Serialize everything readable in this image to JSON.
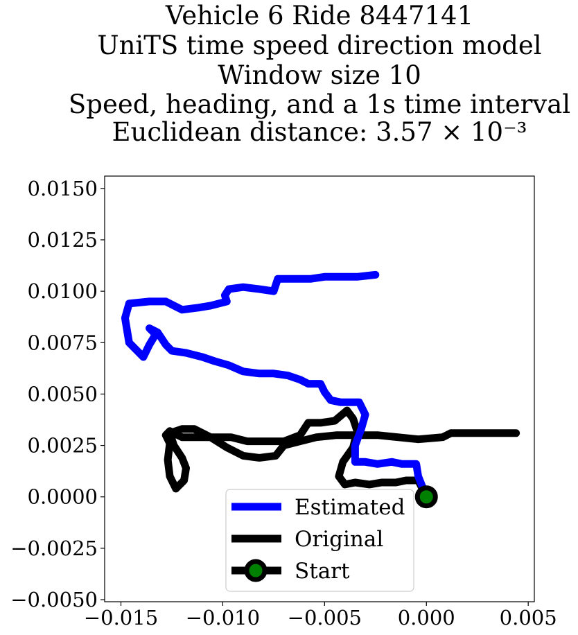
{
  "chart_data": {
    "type": "line",
    "title_lines": [
      "Vehicle 6 Ride 8447141",
      "UniTS time speed direction model",
      "Window size 10",
      "Speed, heading, and a 1s time interval",
      "Euclidean distance: 3.57 × 10⁻³"
    ],
    "xlabel": "",
    "ylabel": "",
    "xlim": [
      -0.0158,
      0.0053
    ],
    "ylim": [
      -0.0051,
      0.0156
    ],
    "xticks": [
      -0.015,
      -0.01,
      -0.005,
      0.0,
      0.005
    ],
    "xtick_labels": [
      "−0.015",
      "−0.010",
      "−0.005",
      "0.000",
      "0.005"
    ],
    "yticks": [
      0.015,
      0.0125,
      0.01,
      0.0075,
      0.005,
      0.0025,
      0.0,
      -0.0025,
      -0.005
    ],
    "ytick_labels": [
      "0.0150",
      "0.0125",
      "0.0100",
      "0.0075",
      "0.0050",
      "0.0025",
      "0.0000",
      "−0.0025",
      "−0.0050"
    ],
    "grid": false,
    "legend_position": "lower-center",
    "series": [
      {
        "name": "Estimated",
        "color": "#0000ff",
        "points": [
          [
            0.0,
            0.0
          ],
          [
            -0.0002,
            0.0005
          ],
          [
            -0.0004,
            0.001
          ],
          [
            -0.0005,
            0.0016
          ],
          [
            -0.0012,
            0.0016
          ],
          [
            -0.0017,
            0.0017
          ],
          [
            -0.0024,
            0.0016
          ],
          [
            -0.003,
            0.0017
          ],
          [
            -0.0035,
            0.0017
          ],
          [
            -0.0035,
            0.0025
          ],
          [
            -0.0032,
            0.0033
          ],
          [
            -0.003,
            0.004
          ],
          [
            -0.0033,
            0.0046
          ],
          [
            -0.0037,
            0.0046
          ],
          [
            -0.0042,
            0.0046
          ],
          [
            -0.0047,
            0.0047
          ],
          [
            -0.005,
            0.0051
          ],
          [
            -0.0052,
            0.0055
          ],
          [
            -0.0058,
            0.0055
          ],
          [
            -0.0062,
            0.0057
          ],
          [
            -0.0068,
            0.0059
          ],
          [
            -0.0075,
            0.006
          ],
          [
            -0.0082,
            0.006
          ],
          [
            -0.009,
            0.0061
          ],
          [
            -0.0097,
            0.0064
          ],
          [
            -0.0104,
            0.0066
          ],
          [
            -0.011,
            0.0068
          ],
          [
            -0.0118,
            0.007
          ],
          [
            -0.0125,
            0.0071
          ],
          [
            -0.0128,
            0.0074
          ],
          [
            -0.0132,
            0.008
          ],
          [
            -0.0136,
            0.0082
          ],
          [
            -0.0133,
            0.0079
          ],
          [
            -0.0136,
            0.0074
          ],
          [
            -0.0139,
            0.0068
          ],
          [
            -0.0146,
            0.0075
          ],
          [
            -0.0148,
            0.0087
          ],
          [
            -0.0146,
            0.0094
          ],
          [
            -0.0136,
            0.0095
          ],
          [
            -0.0128,
            0.0095
          ],
          [
            -0.012,
            0.0091
          ],
          [
            -0.0112,
            0.0092
          ],
          [
            -0.0106,
            0.0093
          ],
          [
            -0.0098,
            0.0095
          ],
          [
            -0.0099,
            0.0098
          ],
          [
            -0.0097,
            0.0101
          ],
          [
            -0.009,
            0.0102
          ],
          [
            -0.0082,
            0.0101
          ],
          [
            -0.0075,
            0.01
          ],
          [
            -0.0073,
            0.0106
          ],
          [
            -0.0066,
            0.0106
          ],
          [
            -0.0057,
            0.0106
          ],
          [
            -0.005,
            0.0107
          ],
          [
            -0.0042,
            0.0107
          ],
          [
            -0.0034,
            0.0107
          ],
          [
            -0.0025,
            0.0108
          ]
        ]
      },
      {
        "name": "Original",
        "color": "#000000",
        "points": [
          [
            0.0,
            0.0
          ],
          [
            -0.0004,
            0.0008
          ],
          [
            -0.001,
            0.0008
          ],
          [
            -0.0015,
            0.0007
          ],
          [
            -0.0022,
            0.0007
          ],
          [
            -0.0028,
            0.0006
          ],
          [
            -0.0035,
            0.0007
          ],
          [
            -0.004,
            0.0006
          ],
          [
            -0.0043,
            0.001
          ],
          [
            -0.0041,
            0.0017
          ],
          [
            -0.0036,
            0.0024
          ],
          [
            -0.0034,
            0.0032
          ],
          [
            -0.0036,
            0.0038
          ],
          [
            -0.0039,
            0.0042
          ],
          [
            -0.0045,
            0.0037
          ],
          [
            -0.0052,
            0.0036
          ],
          [
            -0.0058,
            0.0036
          ],
          [
            -0.0062,
            0.003
          ],
          [
            -0.007,
            0.0027
          ],
          [
            -0.0078,
            0.0027
          ],
          [
            -0.0088,
            0.0027
          ],
          [
            -0.0096,
            0.0029
          ],
          [
            -0.0104,
            0.0029
          ],
          [
            -0.0112,
            0.0029
          ],
          [
            -0.012,
            0.0029
          ],
          [
            -0.0126,
            0.0032
          ],
          [
            -0.0128,
            0.003
          ],
          [
            -0.0126,
            0.0026
          ],
          [
            -0.0127,
            0.0018
          ],
          [
            -0.0126,
            0.001
          ],
          [
            -0.0123,
            0.0004
          ],
          [
            -0.0119,
            0.0008
          ],
          [
            -0.0118,
            0.0014
          ],
          [
            -0.012,
            0.0019
          ],
          [
            -0.0124,
            0.0025
          ],
          [
            -0.0126,
            0.0031
          ],
          [
            -0.012,
            0.0033
          ],
          [
            -0.0114,
            0.0033
          ],
          [
            -0.0106,
            0.0029
          ],
          [
            -0.0098,
            0.0024
          ],
          [
            -0.009,
            0.002
          ],
          [
            -0.0082,
            0.0019
          ],
          [
            -0.0074,
            0.002
          ],
          [
            -0.007,
            0.0025
          ],
          [
            -0.0062,
            0.0027
          ],
          [
            -0.0054,
            0.0029
          ],
          [
            -0.0044,
            0.003
          ],
          [
            -0.0034,
            0.003
          ],
          [
            -0.0024,
            0.003
          ],
          [
            -0.0014,
            0.0029
          ],
          [
            -0.0004,
            0.0028
          ],
          [
            0.0008,
            0.0029
          ],
          [
            0.0012,
            0.0031
          ],
          [
            0.0024,
            0.0031
          ],
          [
            0.0036,
            0.0031
          ],
          [
            0.0044,
            0.0031
          ]
        ]
      }
    ],
    "start_point": {
      "name": "Start",
      "x": 0.0,
      "y": 0.0,
      "color": "#008000"
    },
    "legend": [
      "Estimated",
      "Original",
      "Start"
    ]
  }
}
